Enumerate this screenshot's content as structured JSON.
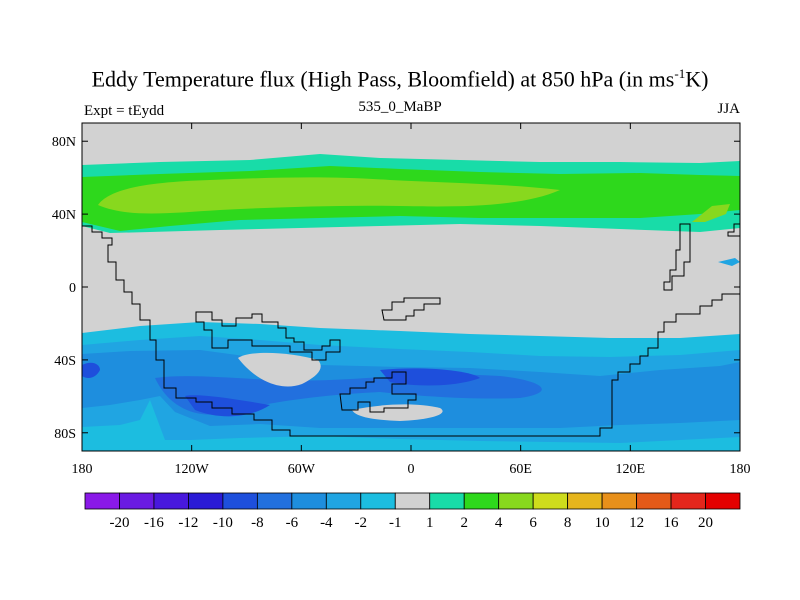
{
  "title": {
    "main": "Eddy Temperature flux (High Pass, Bloomfield) at 850 hPa (in ms",
    "sup": "-1",
    "end": "K)"
  },
  "left_label": "Expt = tEydd",
  "center_label": "535_0_MaBP",
  "right_label": "JJA",
  "colors": {
    "land_gray": "#d2d2d2",
    "coast_line": "#000000"
  },
  "chart_data": {
    "type": "heatmap",
    "x_ticks": [
      "180",
      "120W",
      "60W",
      "0",
      "60E",
      "120E",
      "180"
    ],
    "y_ticks": [
      "80N",
      "40N",
      "0",
      "40S",
      "80S"
    ],
    "x_range": [
      -180,
      180
    ],
    "y_range": [
      -90,
      90
    ],
    "colorbar": {
      "labels": [
        "-20",
        "-16",
        "-12",
        "-10",
        "-8",
        "-6",
        "-4",
        "-2",
        "-1",
        "1",
        "2",
        "4",
        "6",
        "8",
        "10",
        "12",
        "16",
        "20"
      ],
      "colors": [
        "#8a19e8",
        "#6a1ae2",
        "#4818dd",
        "#2a1ad6",
        "#1e4fdc",
        "#2270de",
        "#1e8ede",
        "#20a5e2",
        "#1cbde0",
        "#d2d2d2",
        "#18dca8",
        "#2ed81c",
        "#88d81e",
        "#cedc1c",
        "#e6b51c",
        "#e8901a",
        "#e45a18",
        "#e4261c",
        "#e40000"
      ]
    }
  }
}
